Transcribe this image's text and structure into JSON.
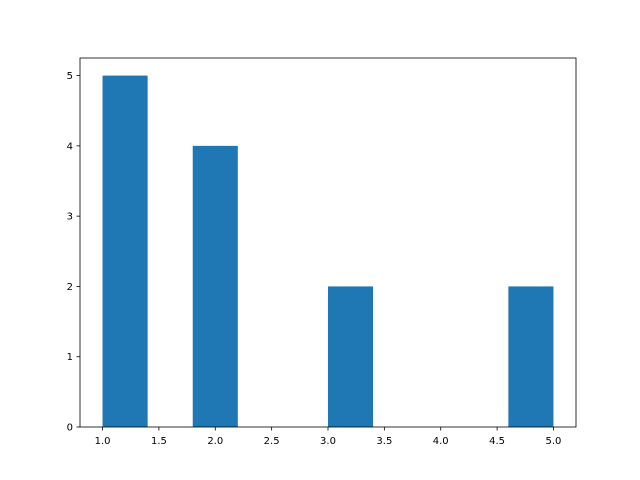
{
  "chart_data": {
    "type": "bar",
    "subtype": "histogram",
    "title": "",
    "xlabel": "",
    "ylabel": "",
    "bins": [
      {
        "x0": 1.0,
        "x1": 1.4,
        "count": 5
      },
      {
        "x0": 1.4,
        "x1": 1.8,
        "count": 0
      },
      {
        "x0": 1.8,
        "x1": 2.2,
        "count": 4
      },
      {
        "x0": 2.2,
        "x1": 2.6,
        "count": 0
      },
      {
        "x0": 2.6,
        "x1": 3.0,
        "count": 0
      },
      {
        "x0": 3.0,
        "x1": 3.4,
        "count": 2
      },
      {
        "x0": 3.4,
        "x1": 3.8,
        "count": 0
      },
      {
        "x0": 3.8,
        "x1": 4.2,
        "count": 0
      },
      {
        "x0": 4.2,
        "x1": 4.6,
        "count": 0
      },
      {
        "x0": 4.6,
        "x1": 5.0,
        "count": 2
      }
    ],
    "xlim": [
      0.8,
      5.2
    ],
    "ylim": [
      0,
      5.25
    ],
    "xticks": [
      "1.0",
      "1.5",
      "2.0",
      "2.5",
      "3.0",
      "3.5",
      "4.0",
      "4.5",
      "5.0"
    ],
    "yticks": [
      "0",
      "1",
      "2",
      "3",
      "4",
      "5"
    ],
    "grid": false,
    "bar_color": "#1f77b4"
  }
}
